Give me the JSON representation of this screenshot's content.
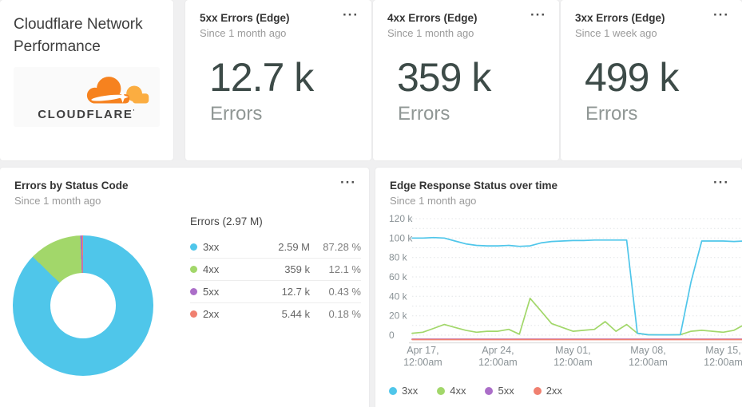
{
  "ui": {
    "menu_icon": "···"
  },
  "title_card": {
    "title": "Cloudflare Network Performance",
    "logo_text": "CLOUDFLARE",
    "logo_cloud_color": "#F6821F",
    "logo_cloud_light_color": "#FBAD41"
  },
  "stat_cards": [
    {
      "title": "5xx Errors (Edge)",
      "subtitle": "Since 1 month ago",
      "value": "12.7 k",
      "unit": "Errors"
    },
    {
      "title": "4xx Errors (Edge)",
      "subtitle": "Since 1 month ago",
      "value": "359 k",
      "unit": "Errors"
    },
    {
      "title": "3xx Errors (Edge)",
      "subtitle": "Since 1 week ago",
      "value": "499 k",
      "unit": "Errors"
    }
  ],
  "pie_card": {
    "title": "Errors by Status Code",
    "subtitle": "Since 1 month ago",
    "legend_title": "Errors (2.97 M)",
    "rows": [
      {
        "label": "3xx",
        "value": "2.59 M",
        "pct": "87.28 %",
        "color": "#4FC6EA"
      },
      {
        "label": "4xx",
        "value": "359 k",
        "pct": "12.1 %",
        "color": "#A2D76A"
      },
      {
        "label": "5xx",
        "value": "12.7 k",
        "pct": "0.43 %",
        "color": "#AB6EC8"
      },
      {
        "label": "2xx",
        "value": "5.44 k",
        "pct": "0.18 %",
        "color": "#F08070"
      }
    ]
  },
  "line_card": {
    "title": "Edge Response Status over time",
    "subtitle": "Since 1 month ago"
  },
  "chart_data": [
    {
      "type": "pie",
      "title": "Errors by Status Code",
      "subtitle": "Since 1 month ago",
      "donut": true,
      "total_label": "Errors (2.97 M)",
      "slices": [
        {
          "label": "3xx",
          "value": 2590000,
          "pct": 87.28,
          "color": "#4FC6EA"
        },
        {
          "label": "4xx",
          "value": 359000,
          "pct": 12.1,
          "color": "#A2D76A"
        },
        {
          "label": "5xx",
          "value": 12700,
          "pct": 0.43,
          "color": "#AB6EC8"
        },
        {
          "label": "2xx",
          "value": 5440,
          "pct": 0.18,
          "color": "#F08070"
        }
      ]
    },
    {
      "type": "line",
      "title": "Edge Response Status over time",
      "subtitle": "Since 1 month ago",
      "grid": "dotted horizontal every 10k",
      "legend_position": "bottom",
      "ylim_k": [
        0,
        120
      ],
      "y_tick_labels": [
        "120 k",
        "100 k",
        "80 k",
        "60 k",
        "40 k",
        "20 k",
        "0"
      ],
      "y_tick_values_k": [
        120,
        100,
        80,
        60,
        40,
        20,
        0
      ],
      "x_start_day": "Apr 16",
      "x_tick_days": [
        1,
        8,
        15,
        22,
        29
      ],
      "x_tick_labels": [
        [
          "Apr 17,",
          "12:00am"
        ],
        [
          "Apr 24,",
          "12:00am"
        ],
        [
          "May 01,",
          "12:00am"
        ],
        [
          "May 08,",
          "12:00am"
        ],
        [
          "May 15,",
          "12:00am"
        ]
      ],
      "series": [
        {
          "name": "4xx",
          "color": "#A2D76A",
          "values_k": [
            2,
            3,
            7,
            11,
            8,
            5,
            3,
            4,
            4,
            6,
            1,
            38,
            25,
            12,
            8,
            4,
            5,
            6,
            14,
            4,
            11,
            2,
            0.5,
            0.3,
            0.3,
            0.5,
            4,
            5,
            4,
            3,
            5,
            11
          ]
        },
        {
          "name": "3xx",
          "color": "#4FC6EA",
          "values_k": [
            100,
            100,
            100.5,
            100,
            97,
            94,
            92.5,
            92,
            92,
            92.5,
            91.5,
            92,
            95,
            96.5,
            97,
            97.5,
            97.5,
            98,
            98,
            98,
            98,
            2,
            0.4,
            0.3,
            0.3,
            0.5,
            55,
            97,
            97,
            97,
            96.5,
            97
          ]
        },
        {
          "name": "5xx",
          "color": "#AB6EC8",
          "values_k": [
            0.3,
            0.3,
            0.3,
            0.3,
            0.3,
            0.3,
            0.3,
            0.3,
            0.3,
            0.3,
            0.3,
            0.3,
            0.3,
            0.3,
            0.3,
            0.3,
            0.3,
            0.3,
            0.3,
            0.3,
            0.3,
            0.3,
            0.3,
            0.3,
            0.3,
            0.3,
            0.3,
            0.3,
            0.3,
            0.3,
            0.3,
            0.3
          ]
        },
        {
          "name": "2xx",
          "color": "#F08070",
          "values_k": [
            0.2,
            0.2,
            0.2,
            0.2,
            0.2,
            0.2,
            0.2,
            0.2,
            0.2,
            0.2,
            0.2,
            0.2,
            0.2,
            0.2,
            0.2,
            0.2,
            0.2,
            0.2,
            0.2,
            0.2,
            0.2,
            0.2,
            0.2,
            0.2,
            0.2,
            0.2,
            0.2,
            0.2,
            0.2,
            0.2,
            0.2,
            0.2
          ]
        }
      ],
      "legend_order": [
        "3xx",
        "4xx",
        "5xx",
        "2xx"
      ]
    }
  ]
}
